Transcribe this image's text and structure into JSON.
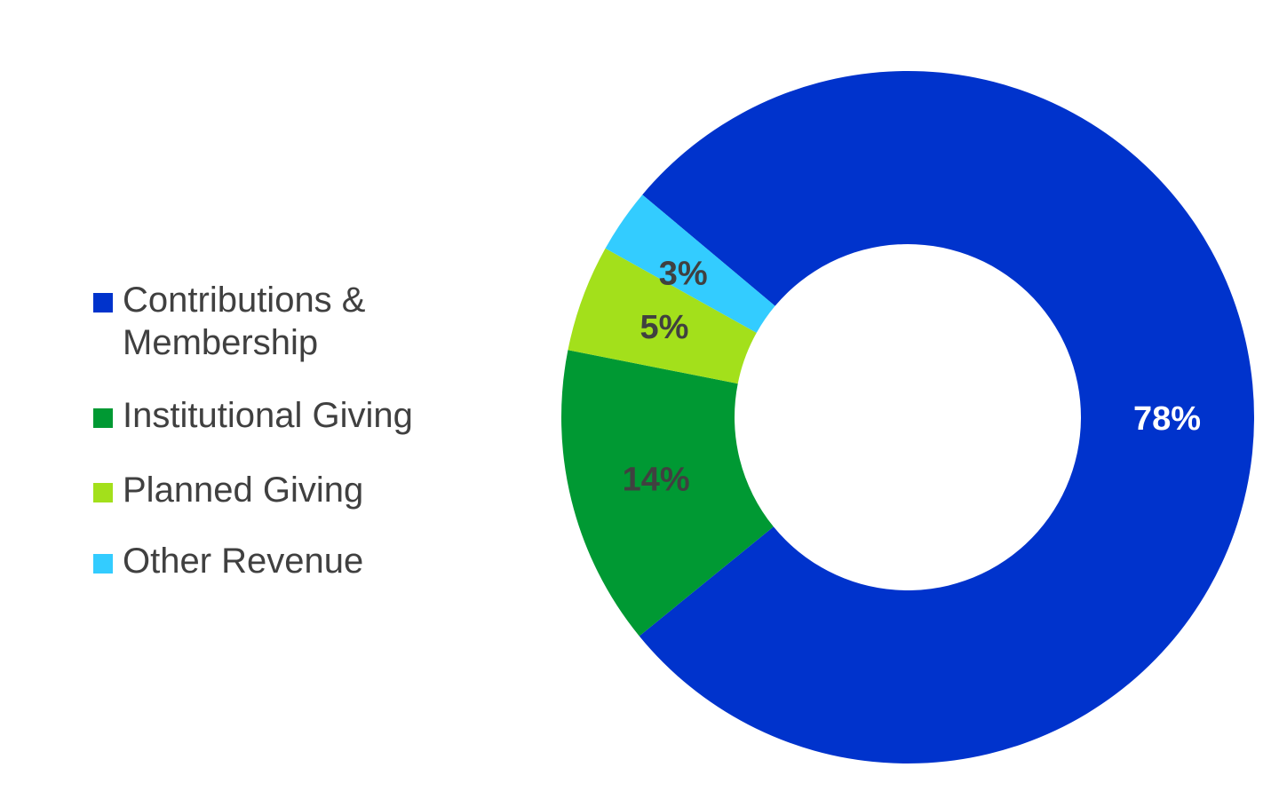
{
  "chart_data": {
    "type": "pie",
    "donut": true,
    "categories": [
      "Contributions & Membership",
      "Institutional Giving",
      "Planned Giving",
      "Other Revenue"
    ],
    "values": [
      78,
      14,
      5,
      3
    ],
    "data_labels": [
      "78%",
      "14%",
      "5%",
      "3%"
    ],
    "colors": [
      "#0033CC",
      "#009933",
      "#A3E01B",
      "#33CCFF"
    ],
    "label_colors": [
      "#FFFFFF",
      "#404040",
      "#404040",
      "#404040"
    ],
    "legend_placement": "left",
    "title": ""
  }
}
